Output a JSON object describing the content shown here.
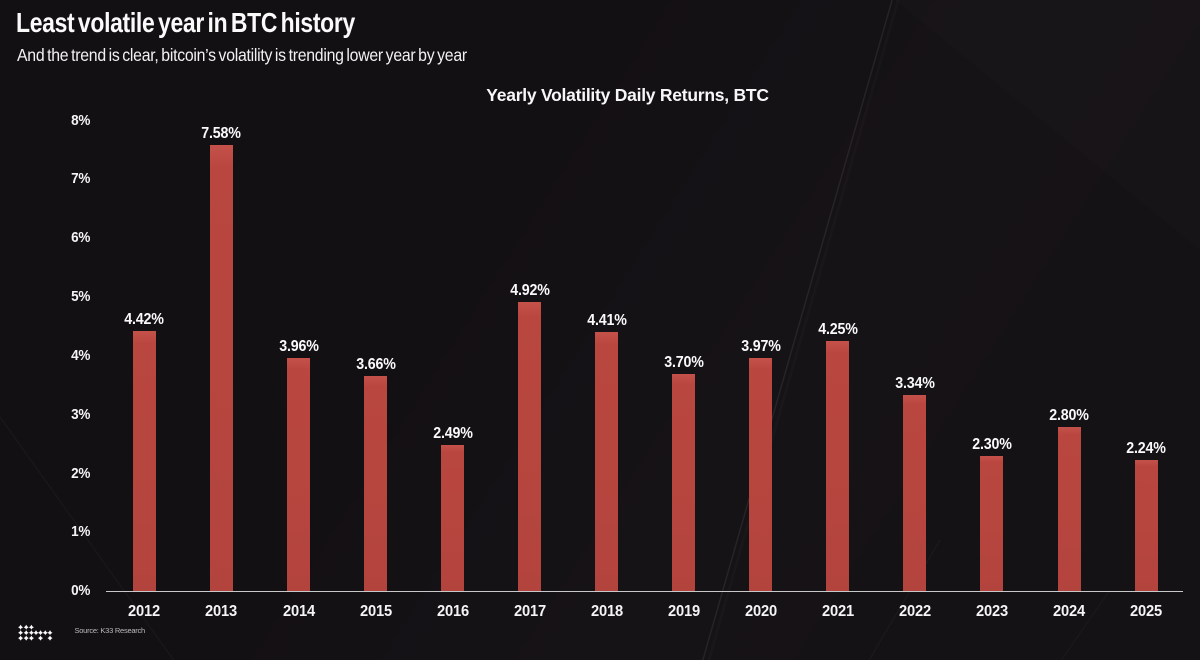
{
  "page": {
    "title": "Least volatile year in BTC history",
    "subtitle": "And the trend is clear, bitcoin’s volatility is trending lower year by year",
    "source": "Source: K33 Research",
    "logo_icon": "k33-logo"
  },
  "colors": {
    "background": "#131014",
    "bar": "#b9463f",
    "text": "#f5f4f5",
    "axis_line": "#c9c8c9",
    "source_text": "#bdbabd"
  },
  "chart_data": {
    "type": "bar",
    "title": "Yearly Volatility Daily Returns, BTC",
    "categories": [
      "2012",
      "2013",
      "2014",
      "2015",
      "2016",
      "2017",
      "2018",
      "2019",
      "2020",
      "2021",
      "2022",
      "2023",
      "2024",
      "2025"
    ],
    "values": [
      4.42,
      7.58,
      3.96,
      3.66,
      2.49,
      4.92,
      4.41,
      3.7,
      3.97,
      4.25,
      3.34,
      2.3,
      2.8,
      2.24
    ],
    "value_labels": [
      "4.42%",
      "7.58%",
      "3.96%",
      "3.66%",
      "2.49%",
      "4.92%",
      "4.41%",
      "3.70%",
      "3.97%",
      "4.25%",
      "3.34%",
      "2.30%",
      "2.80%",
      "2.24%"
    ],
    "yticks": [
      "0%",
      "1%",
      "2%",
      "3%",
      "4%",
      "5%",
      "6%",
      "7%",
      "8%"
    ],
    "ylim": [
      0,
      8
    ],
    "xlabel": "",
    "ylabel": "",
    "grid": false,
    "legend": false
  }
}
